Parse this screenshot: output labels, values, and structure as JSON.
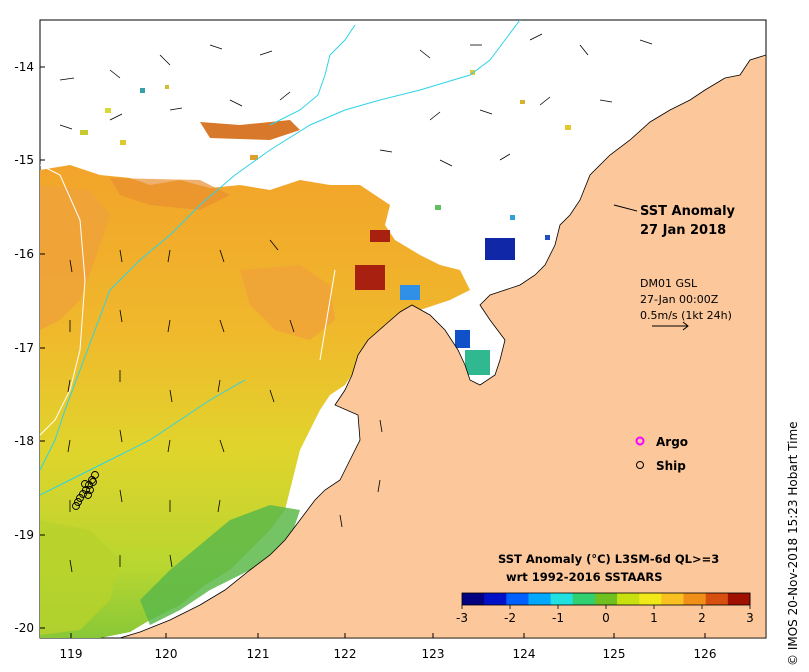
{
  "map": {
    "lat_ticks": [
      "-14",
      "-15",
      "-16",
      "-17",
      "-18",
      "-19",
      "-20"
    ],
    "lon_ticks": [
      "119",
      "120",
      "121",
      "122",
      "123",
      "124",
      "125",
      "126"
    ],
    "lon_range": [
      118.6,
      126.7
    ],
    "lat_range": [
      -20.1,
      -13.5
    ]
  },
  "annotation": {
    "title": "SST Anomaly",
    "date": "27 Jan 2018",
    "current_source": "DM01 GSL",
    "current_time": "27-Jan 00:00Z",
    "current_scale": "0.5m/s (1kt 24h)"
  },
  "legend": {
    "argo_label": "Argo",
    "ship_label": "Ship",
    "argo_color": "#ff00ff",
    "ship_color": "#000000"
  },
  "colorbar": {
    "title": "SST Anomaly (°C) L3SM-6d QL>=3",
    "subtitle": "wrt 1992-2016 SSTAARS",
    "ticks": [
      "-3",
      "-2",
      "-1",
      "0",
      "1",
      "2",
      "3"
    ],
    "colors": [
      "#000080",
      "#0010c8",
      "#0060ff",
      "#00a8ff",
      "#20e0e0",
      "#30d070",
      "#70c020",
      "#c8e010",
      "#f0e818",
      "#f8c020",
      "#f09018",
      "#d85010",
      "#a01000"
    ]
  },
  "credit": "© IMOS 20-Nov-2018 15:23 Hobart Time",
  "colors": {
    "land": "#fbc79b",
    "ocean_warm": "#f2b82a",
    "ocean_yellow": "#e4d82a",
    "ocean_green": "#98cc30",
    "isobath": "#2ed3e6"
  }
}
